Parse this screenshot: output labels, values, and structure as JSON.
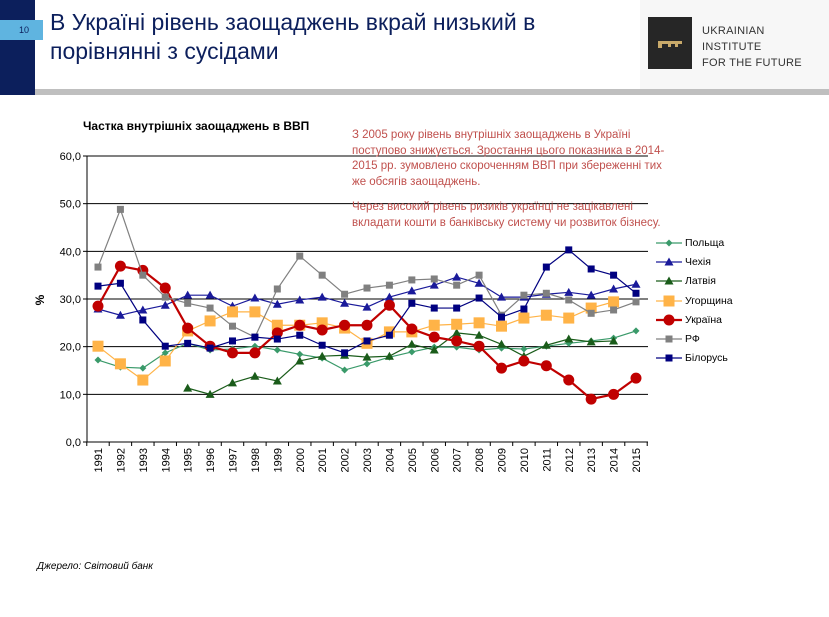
{
  "slide": {
    "page_number": "10",
    "title": "В Україні рівень заощаджень вкрай низький в порівнянні з сусідами",
    "logo": {
      "lines": [
        "Ukrainian",
        "Institute",
        "for the Future"
      ],
      "icon": "key-icon"
    },
    "note_paragraphs": [
      "З 2005 року рівень внутрішніх заощаджень в Україні поступово знижується. Зростання цього показника в 2014-2015 рр. зумовлено скороченням ВВП при збереженні тих же обсягів заощаджень.",
      "Через високий рівень ризиків українці не зацікавлені вкладати кошти в банківську систему чи розвиток бізнесу."
    ],
    "source": "Джерело: Світовий банк",
    "colors": {
      "navy": "#0c1f5c",
      "tab": "#5fb4e0",
      "note": "#c0504d"
    }
  },
  "chart_data": {
    "type": "line",
    "title": "Частка внутрішніх заощаджень в ВВП",
    "ylabel": "%",
    "xlabel": "",
    "ylim": [
      0,
      60
    ],
    "yticks": [
      "0,0",
      "10,0",
      "20,0",
      "30,0",
      "40,0",
      "50,0",
      "60,0"
    ],
    "grid": true,
    "legend": "right",
    "categories": [
      "1991",
      "1992",
      "1993",
      "1994",
      "1995",
      "1996",
      "1997",
      "1998",
      "1999",
      "2000",
      "2001",
      "2002",
      "2003",
      "2004",
      "2005",
      "2006",
      "2007",
      "2008",
      "2009",
      "2010",
      "2011",
      "2012",
      "2013",
      "2014",
      "2015"
    ],
    "series": [
      {
        "name": "Польща",
        "color": "#3a9a6a",
        "marker": "diamond",
        "values": [
          17.2,
          15.7,
          15.5,
          18.7,
          20.7,
          19.3,
          19.5,
          20.1,
          19.3,
          18.4,
          17.6,
          15.1,
          16.4,
          17.8,
          18.9,
          19.9,
          19.9,
          19.3,
          19.7,
          19.5,
          20.1,
          20.7,
          21.2,
          21.8,
          23.3
        ]
      },
      {
        "name": "Чехія",
        "color": "#1a1a9a",
        "marker": "triangle",
        "values": [
          27.9,
          26.6,
          27.7,
          28.7,
          30.8,
          30.8,
          28.5,
          30.2,
          28.9,
          29.8,
          30.4,
          29.1,
          28.3,
          30.4,
          31.7,
          32.9,
          34.6,
          33.3,
          30.4,
          30.4,
          31.0,
          31.4,
          30.8,
          32.1,
          33.1
        ]
      },
      {
        "name": "Латвія",
        "color": "#1a5c1a",
        "marker": "triangle",
        "values": [
          null,
          null,
          null,
          null,
          11.3,
          10.0,
          12.4,
          13.8,
          12.8,
          17.0,
          18.0,
          18.2,
          17.8,
          18.0,
          20.5,
          19.3,
          22.9,
          22.4,
          20.5,
          18.0,
          20.3,
          21.6,
          21.0,
          21.2,
          null
        ]
      },
      {
        "name": "Угорщина",
        "color": "#ffb347",
        "marker": "square-large",
        "values": [
          20.1,
          16.4,
          13.0,
          17.0,
          23.3,
          25.4,
          27.3,
          27.3,
          24.5,
          24.5,
          25.0,
          23.9,
          20.7,
          23.1,
          23.1,
          24.5,
          24.7,
          25.0,
          24.3,
          26.0,
          26.6,
          26.0,
          28.1,
          29.4,
          null
        ]
      },
      {
        "name": "Україна",
        "color": "#c00000",
        "marker": "circle",
        "values": [
          28.5,
          36.9,
          36.0,
          32.3,
          23.9,
          20.1,
          18.7,
          18.7,
          22.9,
          24.5,
          23.5,
          24.5,
          24.5,
          28.7,
          23.7,
          22.0,
          21.2,
          20.1,
          15.5,
          17.0,
          16.0,
          13.0,
          9.0,
          10.0,
          13.4
        ]
      },
      {
        "name": "РФ",
        "color": "#808080",
        "marker": "square",
        "values": [
          36.7,
          48.8,
          35.0,
          30.4,
          29.1,
          28.1,
          24.3,
          22.0,
          32.1,
          39.0,
          35.0,
          31.0,
          32.3,
          32.9,
          34.0,
          34.2,
          32.9,
          35.0,
          26.6,
          30.8,
          31.2,
          29.8,
          27.0,
          27.7,
          29.4
        ]
      },
      {
        "name": "Білорусь",
        "color": "#000080",
        "marker": "square",
        "values": [
          32.7,
          33.3,
          25.6,
          20.1,
          20.7,
          19.7,
          21.2,
          22.0,
          21.6,
          22.4,
          20.3,
          18.7,
          21.2,
          22.4,
          29.1,
          28.1,
          28.1,
          30.2,
          26.2,
          27.9,
          36.7,
          40.3,
          36.3,
          35.0,
          31.2
        ]
      }
    ]
  }
}
